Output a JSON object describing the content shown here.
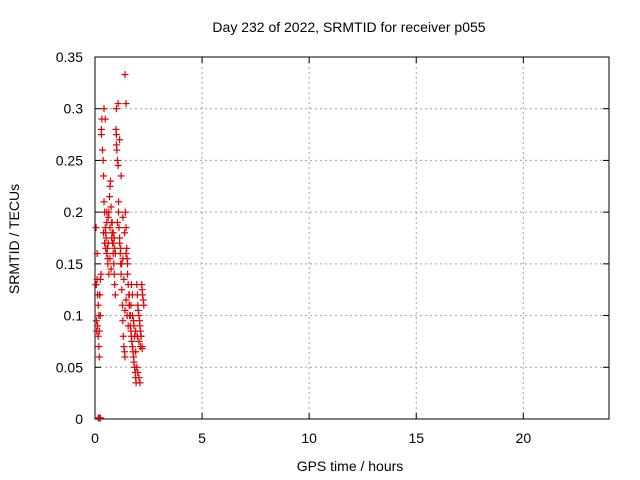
{
  "chart_data": {
    "type": "scatter",
    "title": "Day 232 of 2022, SRMTID for receiver p055",
    "xlabel": "GPS time / hours",
    "ylabel": "SRMTID / TECUs",
    "xlim": [
      0,
      24
    ],
    "ylim": [
      0,
      0.35
    ],
    "xticks": [
      0,
      5,
      10,
      15,
      20
    ],
    "xtick_labels": [
      "0",
      "5",
      "10",
      "15",
      "20"
    ],
    "yticks": [
      0,
      0.05,
      0.1,
      0.15,
      0.2,
      0.25,
      0.3,
      0.35
    ],
    "ytick_labels": [
      "0",
      "0.05",
      "0.1",
      "0.15",
      "0.2",
      "0.25",
      "0.3",
      "0.35"
    ],
    "grid": true,
    "marker": "+",
    "series": [
      {
        "name": "SRMTID",
        "color": "#e00000",
        "x": [
          0.04,
          0.05,
          0.06,
          0.07,
          0.08,
          0.1,
          0.12,
          0.15,
          0.18,
          0.2,
          0.22,
          0.25,
          0.28,
          0.3,
          0.32,
          0.35,
          0.38,
          0.4,
          0.42,
          0.45,
          0.48,
          0.5,
          0.52,
          0.55,
          0.58,
          0.6,
          0.62,
          0.65,
          0.68,
          0.7,
          0.72,
          0.75,
          0.78,
          0.8,
          0.82,
          0.85,
          0.88,
          0.9,
          0.92,
          0.95,
          0.98,
          1.0,
          1.02,
          1.05,
          1.08,
          1.1,
          1.12,
          1.15,
          1.18,
          1.2,
          1.22,
          1.25,
          1.28,
          1.3,
          1.32,
          1.35,
          1.38,
          1.4,
          1.42,
          1.45,
          1.48,
          1.5,
          1.52,
          1.55,
          1.58,
          1.6,
          1.62,
          1.65,
          1.68,
          1.7,
          1.72,
          1.75,
          1.78,
          1.8,
          1.82,
          1.85,
          1.88,
          1.9,
          1.92,
          1.95,
          1.98,
          2.0,
          2.02,
          2.05,
          2.08,
          2.1,
          2.12,
          2.15,
          2.18,
          2.2,
          2.22,
          2.25,
          2.28,
          0.1,
          0.12,
          0.15,
          0.18,
          0.2,
          0.22,
          0.25,
          0.3,
          0.4,
          0.45,
          0.5,
          0.55,
          0.6,
          0.65,
          0.7,
          0.75,
          0.8,
          0.85,
          0.9,
          0.95,
          1.0,
          1.05,
          1.1,
          1.15,
          1.2,
          1.25,
          1.3,
          1.35,
          1.4,
          1.45,
          1.5,
          1.55,
          1.6,
          1.65,
          1.7,
          1.75,
          1.8,
          1.85,
          1.9,
          1.95,
          2.0,
          2.05,
          2.1,
          2.15,
          2.2,
          0.42,
          0.48,
          0.55,
          0.62,
          0.7,
          0.78,
          0.85,
          0.92,
          1.0,
          1.08,
          1.15,
          1.22,
          1.3,
          1.38,
          1.45,
          1.52,
          1.6,
          1.68,
          1.75,
          1.82,
          1.9,
          1.98,
          2.05,
          2.12,
          2.2
        ],
        "y": [
          0.13,
          0.185,
          0.13,
          0.095,
          0.085,
          0.16,
          0.09,
          0.08,
          0.07,
          0.06,
          0.12,
          0.135,
          0.14,
          0.28,
          0.29,
          0.26,
          0.25,
          0.235,
          0.21,
          0.2,
          0.185,
          0.18,
          0.175,
          0.19,
          0.165,
          0.155,
          0.17,
          0.2,
          0.215,
          0.225,
          0.23,
          0.205,
          0.19,
          0.18,
          0.17,
          0.16,
          0.15,
          0.14,
          0.13,
          0.12,
          0.28,
          0.275,
          0.26,
          0.25,
          0.245,
          0.21,
          0.185,
          0.17,
          0.16,
          0.15,
          0.14,
          0.125,
          0.11,
          0.095,
          0.08,
          0.07,
          0.065,
          0.06,
          0.2,
          0.185,
          0.165,
          0.155,
          0.14,
          0.13,
          0.12,
          0.11,
          0.1,
          0.09,
          0.085,
          0.08,
          0.075,
          0.07,
          0.065,
          0.06,
          0.055,
          0.05,
          0.045,
          0.04,
          0.035,
          0.13,
          0.12,
          0.11,
          0.105,
          0.1,
          0.095,
          0.09,
          0.085,
          0.08,
          0.13,
          0.125,
          0.12,
          0.115,
          0.11,
          0.135,
          0.12,
          0.11,
          0.1,
          0.085,
          0.12,
          0.1,
          0.275,
          0.18,
          0.17,
          0.165,
          0.16,
          0.15,
          0.14,
          0.155,
          0.145,
          0.19,
          0.18,
          0.175,
          0.16,
          0.265,
          0.19,
          0.2,
          0.175,
          0.165,
          0.15,
          0.155,
          0.135,
          0.105,
          0.115,
          0.1,
          0.09,
          0.11,
          0.1,
          0.13,
          0.12,
          0.095,
          0.08,
          0.065,
          0.05,
          0.045,
          0.04,
          0.035,
          0.08,
          0.07,
          0.3,
          0.29,
          0.2,
          0.195,
          0.185,
          0.175,
          0.17,
          0.165,
          0.3,
          0.305,
          0.27,
          0.235,
          0.195,
          0.18,
          0.16,
          0.15,
          0.12,
          0.11,
          0.1,
          0.09,
          0.085,
          0.08,
          0.075,
          0.07,
          0.068
        ],
        "extra_points": [
          {
            "x": 0.15,
            "y": 0.001
          },
          {
            "x": 0.2,
            "y": 0.001
          },
          {
            "x": 0.25,
            "y": 0.001
          },
          {
            "x": 1.4,
            "y": 0.333
          },
          {
            "x": 1.45,
            "y": 0.305
          }
        ]
      }
    ]
  }
}
